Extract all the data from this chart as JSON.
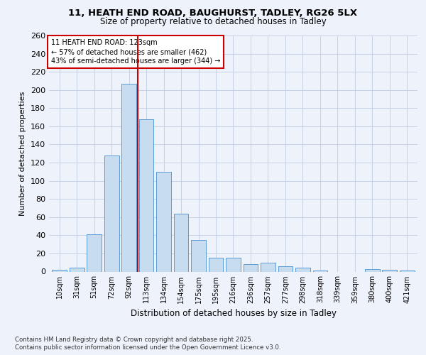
{
  "title_line1": "11, HEATH END ROAD, BAUGHURST, TADLEY, RG26 5LX",
  "title_line2": "Size of property relative to detached houses in Tadley",
  "xlabel": "Distribution of detached houses by size in Tadley",
  "ylabel": "Number of detached properties",
  "categories": [
    "10sqm",
    "31sqm",
    "51sqm",
    "72sqm",
    "92sqm",
    "113sqm",
    "134sqm",
    "154sqm",
    "175sqm",
    "195sqm",
    "216sqm",
    "236sqm",
    "257sqm",
    "277sqm",
    "298sqm",
    "318sqm",
    "339sqm",
    "359sqm",
    "380sqm",
    "400sqm",
    "421sqm"
  ],
  "values": [
    2,
    4,
    41,
    128,
    207,
    168,
    110,
    64,
    35,
    15,
    15,
    8,
    10,
    6,
    4,
    1,
    0,
    0,
    3,
    2,
    1
  ],
  "bar_color": "#c8dcf0",
  "bar_edge_color": "#5b9bd5",
  "vline_x": 4.5,
  "annotation_title": "11 HEATH END ROAD: 123sqm",
  "annotation_line2": "← 57% of detached houses are smaller (462)",
  "annotation_line3": "43% of semi-detached houses are larger (344) →",
  "annotation_box_color": "#ffffff",
  "annotation_box_edge": "#cc0000",
  "vline_color": "#cc0000",
  "ylim": [
    0,
    260
  ],
  "yticks": [
    0,
    20,
    40,
    60,
    80,
    100,
    120,
    140,
    160,
    180,
    200,
    220,
    240,
    260
  ],
  "footer_line1": "Contains HM Land Registry data © Crown copyright and database right 2025.",
  "footer_line2": "Contains public sector information licensed under the Open Government Licence v3.0.",
  "background_color": "#eef2fb",
  "plot_bg_color": "#eef2fb",
  "title1_fontsize": 9.5,
  "title2_fontsize": 8.5,
  "ylabel_fontsize": 8,
  "xlabel_fontsize": 8.5,
  "tick_fontsize": 7,
  "ann_fontsize": 7,
  "footer_fontsize": 6.2
}
